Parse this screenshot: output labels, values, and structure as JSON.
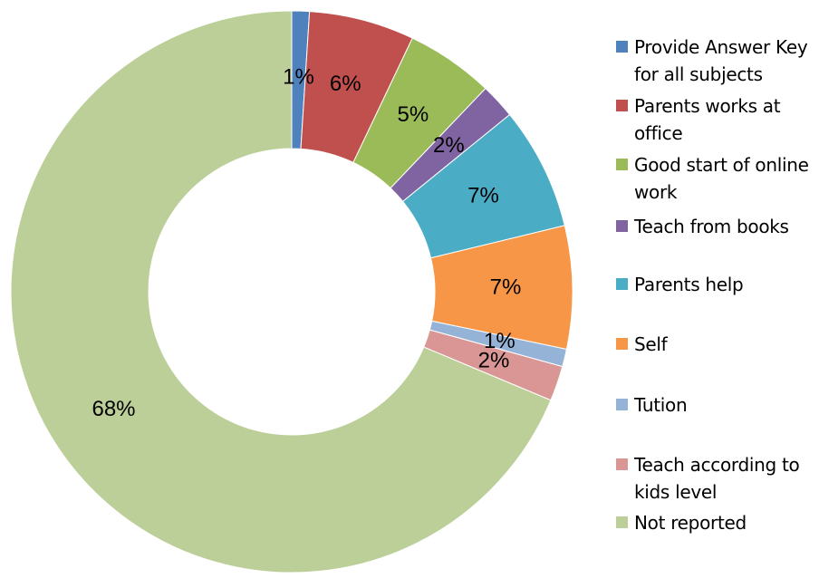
{
  "chart_data": {
    "type": "donut",
    "categories": [
      "Provide  Answer Key for all subjects",
      "Parents works at office",
      "Good start of online work",
      "Teach from books",
      "Parents help",
      "Self",
      "Tution",
      "Teach according to kids level",
      "Not reported"
    ],
    "values": [
      1,
      6,
      5,
      2,
      7,
      7,
      1,
      2,
      68
    ],
    "value_labels": [
      "1%",
      "6%",
      "5%",
      "2%",
      "7%",
      "7%",
      "1%",
      "2%",
      "68%"
    ],
    "colors": [
      "#4f81bd",
      "#c0504d",
      "#9bbb59",
      "#8064a2",
      "#4bacc6",
      "#f79646",
      "#95b3d7",
      "#d99694",
      "#bccf98"
    ],
    "legend": "right"
  }
}
